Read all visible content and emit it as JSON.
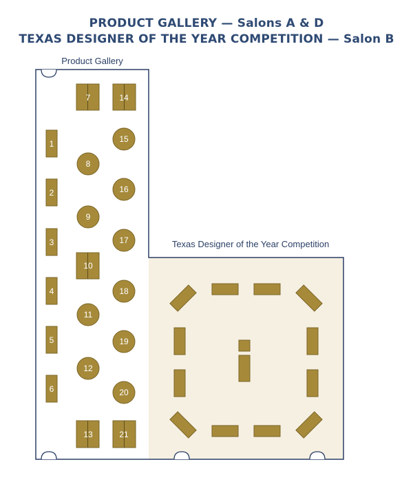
{
  "titles": {
    "line1": "PRODUCT GALLERY — Salons A & D",
    "line2": "TEXAS DESIGNER OF THE YEAR COMPETITION — Salon B"
  },
  "rooms": {
    "product_gallery": "Product Gallery",
    "competition": "Texas Designer of the Year Competition"
  },
  "booths": {
    "b1": "1",
    "b2": "2",
    "b3": "3",
    "b4": "4",
    "b5": "5",
    "b6": "6",
    "b7": "7",
    "b8": "8",
    "b9": "9",
    "b10": "10",
    "b11": "11",
    "b12": "12",
    "b13": "13",
    "b14": "14",
    "b15": "15",
    "b16": "16",
    "b17": "17",
    "b18": "18",
    "b19": "19",
    "b20": "20",
    "b21": "21"
  },
  "colors": {
    "booth_fill": "#a68a3a",
    "booth_stroke": "#7a6526",
    "salon_b_fill": "#f6f0e2",
    "wall": "#2b3f66",
    "title": "#2f4a73"
  }
}
